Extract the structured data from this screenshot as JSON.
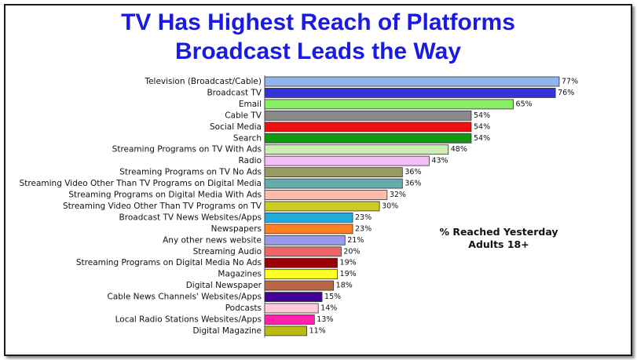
{
  "chart_data": {
    "type": "bar",
    "orientation": "horizontal",
    "title": "TV Has Highest Reach of Platforms",
    "subtitle": "Broadcast Leads the Way",
    "annotation": [
      "% Reached Yesterday",
      "Adults 18+"
    ],
    "value_suffix": "%",
    "xlim": [
      0,
      80
    ],
    "grid": false,
    "legend": "none",
    "categories": [
      "Television (Broadcast/Cable)",
      "Broadcast TV",
      "Email",
      "Cable TV",
      "Social Media",
      "Search",
      "Streaming Programs on TV With Ads",
      "Radio",
      "Streaming Programs on TV No Ads",
      "Streaming Video Other Than TV Programs on Digital Media",
      "Streaming Programs on Digital Media With Ads",
      "Streaming Video Other Than TV Programs on TV",
      "Broadcast TV News Websites/Apps",
      "Newspapers",
      "Any other news website",
      "Streaming Audio",
      "Streaming Programs on Digital Media No Ads",
      "Magazines",
      "Digital Newspaper",
      "Cable News Channels' Websites/Apps",
      "Podcasts",
      "Local Radio Stations Websites/Apps",
      "Digital Magazine"
    ],
    "values": [
      77,
      76,
      65,
      54,
      54,
      54,
      48,
      43,
      36,
      36,
      32,
      30,
      23,
      23,
      21,
      20,
      19,
      19,
      18,
      15,
      14,
      13,
      11
    ],
    "colors": [
      "#8fb4ee",
      "#3333dd",
      "#88ee66",
      "#8a8a8a",
      "#ee1111",
      "#119911",
      "#cceeb0",
      "#f4bdf4",
      "#999966",
      "#66aaaa",
      "#ffbbaa",
      "#cccc22",
      "#22aadd",
      "#ff7f22",
      "#9999ee",
      "#ee6666",
      "#990000",
      "#ffff22",
      "#bb6644",
      "#440099",
      "#ffccdd",
      "#ff22aa",
      "#bbbb11"
    ]
  }
}
